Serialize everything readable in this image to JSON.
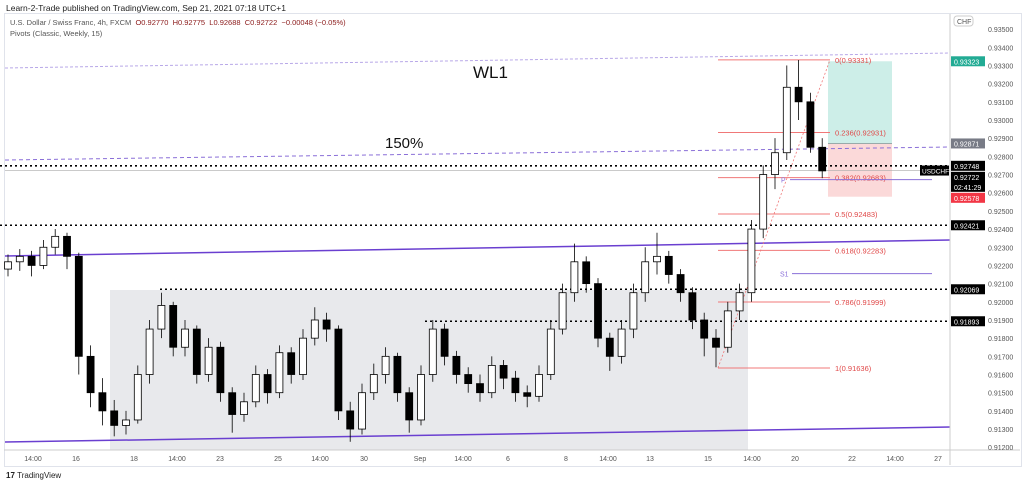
{
  "header": {
    "published": "Learn-2-Trade published on TradingView.com, Sep 21, 2021 07:18 UTC+1",
    "symbol_desc": "U.S. Dollar / Swiss Franc, 4h, FXCM",
    "open": "O0.92770",
    "high": "H0.92775",
    "low": "L0.92688",
    "close": "C0.92722",
    "change": "−0.00048 (−0.05%)",
    "indicator": "Pivots (Classic, Weekly, 15)"
  },
  "footer": {
    "logo": "17",
    "brand": "TradingView"
  },
  "chart_data": {
    "type": "candlestick",
    "currency": "CHF",
    "symbol": "USDCHF",
    "ylim": [
      0.9118,
      0.9357
    ],
    "y_ticks": [
      "0.93500",
      "0.93400",
      "0.93300",
      "0.93200",
      "0.93100",
      "0.93000",
      "0.92900",
      "0.92800",
      "0.92700",
      "0.92600",
      "0.92500",
      "0.92400",
      "0.92300",
      "0.92200",
      "0.92100",
      "0.92000",
      "0.91900",
      "0.91800",
      "0.91700",
      "0.91600",
      "0.91500",
      "0.91400",
      "0.91300",
      "0.91200"
    ],
    "x_ticks": [
      "14:00",
      "16",
      "18",
      "14:00",
      "23",
      "25",
      "14:00",
      "30",
      "Sep",
      "14:00",
      "6",
      "8",
      "14:00",
      "13",
      "15",
      "14:00",
      "20",
      "22",
      "14:00",
      "27"
    ],
    "candles": [
      [
        0.9218,
        0.9226,
        0.9214,
        0.9222
      ],
      [
        0.9222,
        0.9229,
        0.9217,
        0.9225
      ],
      [
        0.9225,
        0.9228,
        0.9214,
        0.922
      ],
      [
        0.922,
        0.9234,
        0.9218,
        0.923
      ],
      [
        0.923,
        0.924,
        0.9226,
        0.9236
      ],
      [
        0.9236,
        0.9238,
        0.9218,
        0.9225
      ],
      [
        0.9225,
        0.9227,
        0.916,
        0.917
      ],
      [
        0.917,
        0.9176,
        0.9142,
        0.915
      ],
      [
        0.915,
        0.9158,
        0.9132,
        0.914
      ],
      [
        0.914,
        0.9146,
        0.9126,
        0.9132
      ],
      [
        0.9132,
        0.914,
        0.9127,
        0.9135
      ],
      [
        0.9135,
        0.9165,
        0.9133,
        0.916
      ],
      [
        0.916,
        0.919,
        0.9155,
        0.9185
      ],
      [
        0.9185,
        0.9205,
        0.918,
        0.9198
      ],
      [
        0.9198,
        0.92,
        0.917,
        0.9175
      ],
      [
        0.9175,
        0.919,
        0.917,
        0.9185
      ],
      [
        0.9185,
        0.9187,
        0.9155,
        0.916
      ],
      [
        0.916,
        0.918,
        0.9156,
        0.9175
      ],
      [
        0.9175,
        0.9178,
        0.9145,
        0.915
      ],
      [
        0.915,
        0.9153,
        0.9128,
        0.9138
      ],
      [
        0.9138,
        0.915,
        0.9134,
        0.9145
      ],
      [
        0.9145,
        0.9165,
        0.9142,
        0.916
      ],
      [
        0.916,
        0.9163,
        0.9144,
        0.915
      ],
      [
        0.915,
        0.9176,
        0.9147,
        0.9172
      ],
      [
        0.9172,
        0.9175,
        0.9155,
        0.916
      ],
      [
        0.916,
        0.9185,
        0.9157,
        0.918
      ],
      [
        0.918,
        0.9197,
        0.9176,
        0.919
      ],
      [
        0.919,
        0.9194,
        0.9178,
        0.9185
      ],
      [
        0.9185,
        0.9187,
        0.9135,
        0.914
      ],
      [
        0.914,
        0.9145,
        0.9123,
        0.913
      ],
      [
        0.913,
        0.9155,
        0.9127,
        0.915
      ],
      [
        0.915,
        0.9166,
        0.9146,
        0.916
      ],
      [
        0.916,
        0.9175,
        0.9155,
        0.917
      ],
      [
        0.917,
        0.9172,
        0.9145,
        0.915
      ],
      [
        0.915,
        0.9153,
        0.9128,
        0.9135
      ],
      [
        0.9135,
        0.9165,
        0.9132,
        0.916
      ],
      [
        0.916,
        0.919,
        0.9156,
        0.9185
      ],
      [
        0.9185,
        0.9188,
        0.9165,
        0.917
      ],
      [
        0.917,
        0.9173,
        0.9155,
        0.916
      ],
      [
        0.916,
        0.9164,
        0.915,
        0.9155
      ],
      [
        0.9155,
        0.916,
        0.9145,
        0.915
      ],
      [
        0.915,
        0.917,
        0.9147,
        0.9165
      ],
      [
        0.9165,
        0.9168,
        0.9152,
        0.9158
      ],
      [
        0.9158,
        0.9162,
        0.9145,
        0.915
      ],
      [
        0.915,
        0.9154,
        0.9142,
        0.9148
      ],
      [
        0.9148,
        0.9165,
        0.9145,
        0.916
      ],
      [
        0.916,
        0.919,
        0.9157,
        0.9185
      ],
      [
        0.9185,
        0.921,
        0.9182,
        0.9205
      ],
      [
        0.9205,
        0.9232,
        0.92,
        0.9222
      ],
      [
        0.9222,
        0.9225,
        0.9205,
        0.921
      ],
      [
        0.921,
        0.9213,
        0.9175,
        0.918
      ],
      [
        0.918,
        0.9183,
        0.9162,
        0.917
      ],
      [
        0.917,
        0.919,
        0.9166,
        0.9185
      ],
      [
        0.9185,
        0.921,
        0.918,
        0.9205
      ],
      [
        0.9205,
        0.923,
        0.92,
        0.9222
      ],
      [
        0.9222,
        0.9238,
        0.9215,
        0.9225
      ],
      [
        0.9225,
        0.9228,
        0.921,
        0.9215
      ],
      [
        0.9215,
        0.9218,
        0.92,
        0.9205
      ],
      [
        0.9205,
        0.9208,
        0.9185,
        0.919
      ],
      [
        0.919,
        0.9194,
        0.917,
        0.918
      ],
      [
        0.918,
        0.9185,
        0.9164,
        0.9175
      ],
      [
        0.9175,
        0.92,
        0.9172,
        0.9195
      ],
      [
        0.9195,
        0.921,
        0.919,
        0.9205
      ],
      [
        0.9205,
        0.9245,
        0.92,
        0.924
      ],
      [
        0.924,
        0.9275,
        0.9235,
        0.927
      ],
      [
        0.927,
        0.929,
        0.9262,
        0.9282
      ],
      [
        0.9282,
        0.933,
        0.9278,
        0.9318
      ],
      [
        0.9318,
        0.9333,
        0.93,
        0.931
      ],
      [
        0.931,
        0.9315,
        0.9282,
        0.9285
      ],
      [
        0.9285,
        0.929,
        0.9268,
        0.9272
      ]
    ],
    "fibonacci": [
      {
        "label": "0(0.93331)",
        "price": 0.93331
      },
      {
        "label": "0.236(0.92931)",
        "price": 0.92931
      },
      {
        "label": "0.382(0.92683)",
        "price": 0.92683
      },
      {
        "label": "0.5(0.92483)",
        "price": 0.92483
      },
      {
        "label": "0.618(0.92283)",
        "price": 0.92283
      },
      {
        "label": "0.786(0.91999)",
        "price": 0.91999
      },
      {
        "label": "1(0.91636)",
        "price": 0.91636
      }
    ],
    "pivots": [
      {
        "label": "P",
        "price": 0.92672
      },
      {
        "label": "S1",
        "price": 0.92155
      }
    ],
    "horizontal_levels": [
      0.92748,
      0.92421,
      0.92069,
      0.91893
    ],
    "position": {
      "target": 0.93323,
      "entry": 0.92871,
      "stop": 0.92578
    },
    "annotations": [
      "WL1",
      "150%"
    ],
    "price_badges": [
      {
        "text": "0.93323",
        "price": 0.93323,
        "color": "#22ab94"
      },
      {
        "text": "0.92871",
        "price": 0.92871,
        "color": "#787b86"
      },
      {
        "text": "0.92748",
        "price": 0.92748,
        "color": "#000000"
      },
      {
        "text": "0.92722",
        "price": 0.92722,
        "color": "#000000",
        "countdown": "02:41:29"
      },
      {
        "text": "0.92578",
        "price": 0.92578,
        "color": "#f23645"
      },
      {
        "text": "0.92421",
        "price": 0.92421,
        "color": "#000000"
      },
      {
        "text": "0.92069",
        "price": 0.92069,
        "color": "#000000"
      },
      {
        "text": "0.91893",
        "price": 0.91893,
        "color": "#000000"
      }
    ],
    "colors": {
      "fib": "#f07878",
      "channel": "#6a3fd0",
      "pivot": "#8a6fd8",
      "target_zone": "#cdeee8",
      "stop_zone": "#fbd9d9",
      "range_box": "#e8e9ec"
    }
  }
}
